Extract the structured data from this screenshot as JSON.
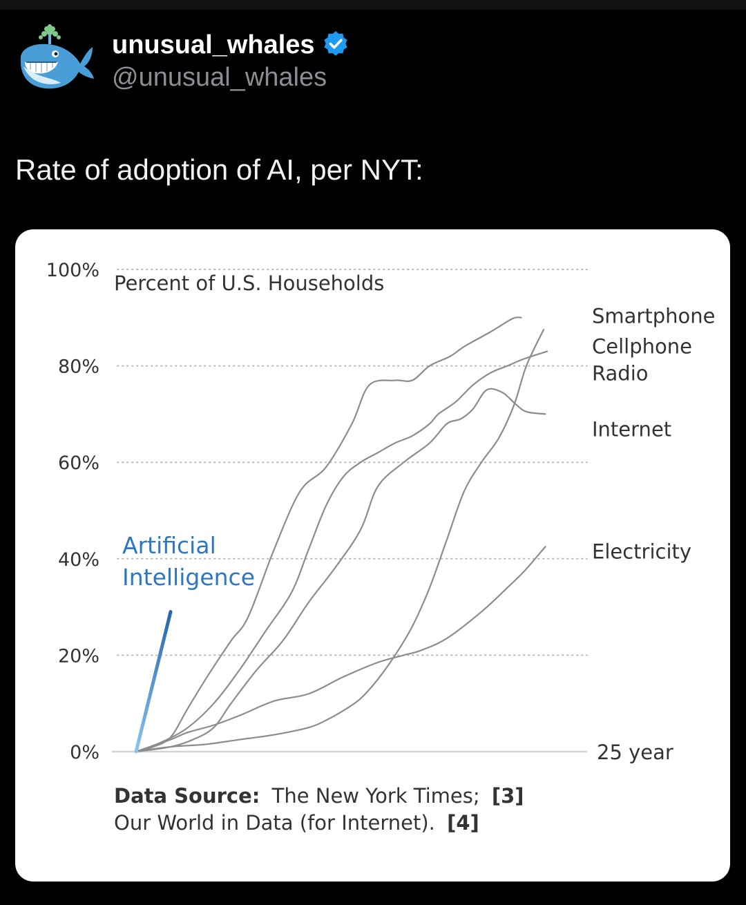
{
  "post": {
    "display_name": "unusual_whales",
    "handle": "@unusual_whales",
    "text": "Rate of adoption of AI, per NYT:",
    "verified": true,
    "verified_color": "#1d9bf0"
  },
  "chart_data": {
    "type": "line",
    "title": "Percent of U.S. Households",
    "x_end_label": "25 year",
    "xlim": [
      0,
      25
    ],
    "ylim": [
      0,
      100
    ],
    "y_ticks": [
      "0%",
      "20%",
      "40%",
      "60%",
      "80%",
      "100%"
    ],
    "y_tick_values": [
      0,
      20,
      40,
      60,
      80,
      100
    ],
    "gridlines": "dotted",
    "series": [
      {
        "name": "Smartphone",
        "color": "#8c8c8c",
        "x": [
          0,
          1,
          2,
          3,
          4.2,
          5.5,
          6.5,
          8,
          9.5,
          11,
          12.5,
          13.5,
          15,
          16,
          17,
          18.2,
          19,
          20.5,
          21.8,
          22.3
        ],
        "y": [
          0,
          1,
          3,
          9,
          16,
          23,
          28,
          42,
          54,
          59,
          68,
          76,
          77,
          77,
          80,
          82,
          84,
          87,
          89.8,
          90
        ]
      },
      {
        "name": "Cellphone",
        "color": "#8c8c8c",
        "x": [
          0,
          2,
          4,
          6,
          8,
          10,
          11,
          12,
          13,
          14,
          15,
          16,
          17,
          18,
          19,
          20,
          21,
          21.9,
          22.6,
          23.6
        ],
        "y": [
          0,
          1,
          1.5,
          2.5,
          3.5,
          5,
          6.5,
          8.5,
          11,
          15,
          20,
          26,
          34,
          44,
          54,
          60,
          65,
          72,
          80,
          87.5
        ]
      },
      {
        "name": "Radio",
        "color": "#8c8c8c",
        "x": [
          0,
          1.5,
          3,
          4.5,
          6,
          7.5,
          9,
          10,
          11,
          12,
          13,
          14,
          15,
          16,
          17,
          17.5,
          18.5,
          19.5,
          20.5,
          21.5,
          22.5,
          23.8
        ],
        "y": [
          0,
          2,
          5,
          10,
          17,
          25,
          33,
          42,
          51,
          57,
          60,
          62,
          64,
          65.5,
          68,
          70,
          72.5,
          76,
          78.5,
          80,
          81.5,
          83
        ]
      },
      {
        "name": "Internet",
        "color": "#8c8c8c",
        "x": [
          0,
          2,
          3.3,
          4.5,
          5.5,
          7,
          8.5,
          10,
          11.5,
          13,
          14,
          15.5,
          17,
          18,
          18.8,
          19.5,
          20.3,
          21.2,
          22,
          22.6,
          23.7
        ],
        "y": [
          0,
          1,
          2.5,
          5,
          10,
          17,
          23,
          31,
          38,
          46,
          55,
          60,
          64,
          68,
          69,
          71,
          75,
          74.5,
          72,
          70.5,
          70
        ]
      },
      {
        "name": "Electricity",
        "color": "#8c8c8c",
        "x": [
          0,
          2,
          3,
          4.5,
          6,
          8,
          10,
          12,
          14,
          15.5,
          16.5,
          18,
          20,
          21.5,
          22.5,
          23.7
        ],
        "y": [
          0,
          2.5,
          4,
          5.5,
          7.5,
          10.5,
          12,
          15.5,
          18.5,
          20,
          21,
          23.5,
          29,
          34,
          37.5,
          42.5
        ]
      },
      {
        "name": "Artificial Intelligence",
        "color": "#2d76c1",
        "x": [
          0,
          2
        ],
        "y": [
          0,
          29
        ]
      }
    ],
    "end_labels": [
      {
        "series": "Smartphone",
        "text": "Smartphone"
      },
      {
        "series": "Cellphone",
        "text": "Cellphone"
      },
      {
        "series": "Radio",
        "text": "Radio"
      },
      {
        "series": "Internet",
        "text": "Internet"
      },
      {
        "series": "Electricity",
        "text": "Electricity"
      }
    ],
    "ai_label": [
      "Artificial",
      "Intelligence"
    ],
    "source": {
      "label": "Data Source:",
      "line1": "The New York Times;",
      "ref1": "[3]",
      "line2": "Our World in Data (for Internet).",
      "ref2": "[4]"
    }
  }
}
